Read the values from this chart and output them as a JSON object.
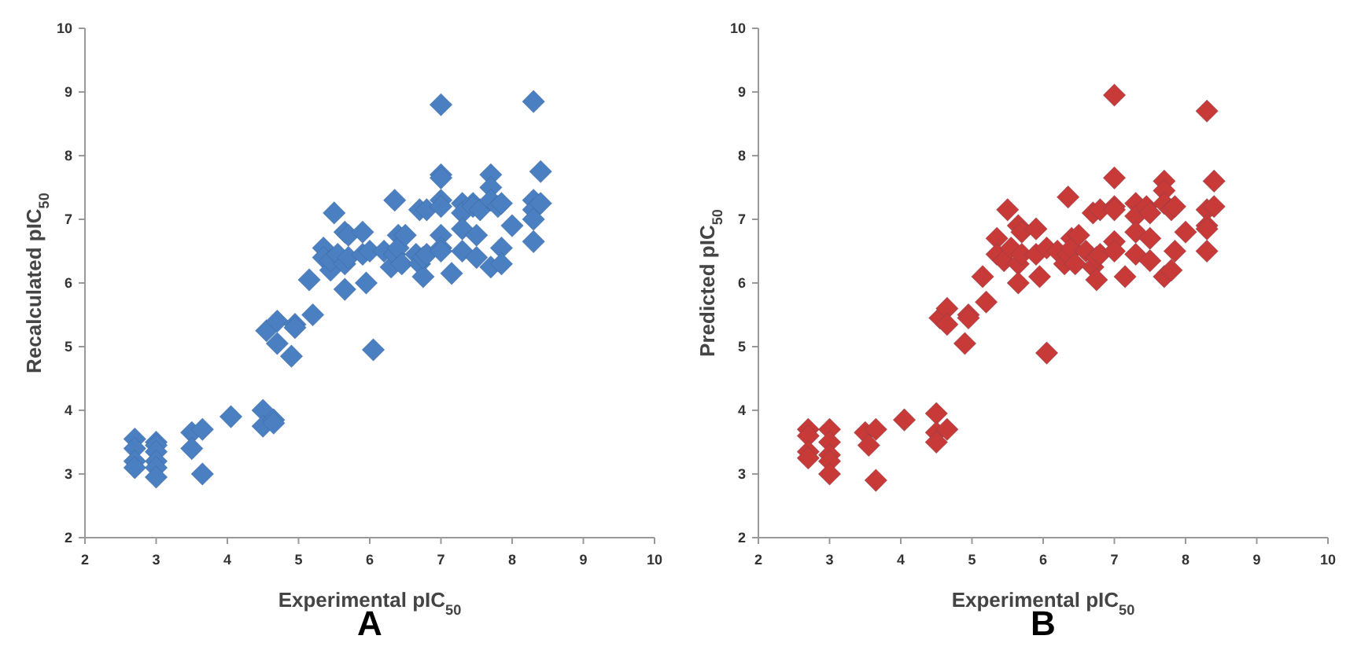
{
  "chart_data": [
    {
      "type": "scatter",
      "title": "A",
      "xlabel": "Experimental pIC$_{50}$",
      "ylabel": "Recalculated pIC$_{50}$",
      "xlim": [
        2,
        10
      ],
      "ylim": [
        2,
        10
      ],
      "xticks": [
        2,
        3,
        4,
        5,
        6,
        7,
        8,
        9,
        10
      ],
      "yticks": [
        2,
        3,
        4,
        5,
        6,
        7,
        8,
        9,
        10
      ],
      "grid": false,
      "marker": "diamond",
      "series": [
        {
          "color": "#4a7fc1",
          "x": [
            2.7,
            2.7,
            2.7,
            2.7,
            3.0,
            3.0,
            3.0,
            3.0,
            3.0,
            3.0,
            3.5,
            3.5,
            3.65,
            3.65,
            4.05,
            4.5,
            4.5,
            4.65,
            4.65,
            4.55,
            4.7,
            4.7,
            4.9,
            4.95,
            4.95,
            5.15,
            5.2,
            5.5,
            5.35,
            5.35,
            5.45,
            5.45,
            5.55,
            5.65,
            5.65,
            5.65,
            5.7,
            5.7,
            5.9,
            5.9,
            5.95,
            6.0,
            6.05,
            6.2,
            6.3,
            6.35,
            6.35,
            6.4,
            6.4,
            6.45,
            6.5,
            6.65,
            6.7,
            6.7,
            6.75,
            6.75,
            6.8,
            6.8,
            7.0,
            7.0,
            7.0,
            7.0,
            7.0,
            7.0,
            7.0,
            7.0,
            7.15,
            7.3,
            7.3,
            7.3,
            7.3,
            7.45,
            7.45,
            7.5,
            7.5,
            7.55,
            7.7,
            7.7,
            7.7,
            7.7,
            7.8,
            7.85,
            7.85,
            7.85,
            8.0,
            8.3,
            8.3,
            8.3,
            8.3,
            8.3,
            8.4,
            8.4
          ],
          "values": [
            3.55,
            3.4,
            3.2,
            3.1,
            3.5,
            3.45,
            3.35,
            3.2,
            3.1,
            2.95,
            3.65,
            3.4,
            3.7,
            3.0,
            3.9,
            4.0,
            3.75,
            3.85,
            3.8,
            5.25,
            5.4,
            5.05,
            4.85,
            5.35,
            5.3,
            6.05,
            5.5,
            7.1,
            6.55,
            6.4,
            6.2,
            6.35,
            6.45,
            6.8,
            6.3,
            5.9,
            6.75,
            6.4,
            6.8,
            6.45,
            6.0,
            6.5,
            4.95,
            6.5,
            6.25,
            7.3,
            6.45,
            6.75,
            6.55,
            6.3,
            6.75,
            6.45,
            7.15,
            6.3,
            6.1,
            6.4,
            7.15,
            6.45,
            8.8,
            7.7,
            7.65,
            7.3,
            7.2,
            6.75,
            6.55,
            6.5,
            6.15,
            7.25,
            7.1,
            6.85,
            6.5,
            7.25,
            7.2,
            6.75,
            6.4,
            7.15,
            7.7,
            7.5,
            7.3,
            6.25,
            7.2,
            7.25,
            6.55,
            6.3,
            6.9,
            8.85,
            7.3,
            7.15,
            7.0,
            6.65,
            7.75,
            7.25
          ]
        }
      ]
    },
    {
      "type": "scatter",
      "title": "B",
      "xlabel": "Experimental pIC$_{50}$",
      "ylabel": "Predicted pIC$_{50}$",
      "xlim": [
        2,
        10
      ],
      "ylim": [
        2,
        10
      ],
      "xticks": [
        2,
        3,
        4,
        5,
        6,
        7,
        8,
        9,
        10
      ],
      "yticks": [
        2,
        3,
        4,
        5,
        6,
        7,
        8,
        9,
        10
      ],
      "grid": false,
      "marker": "diamond",
      "series": [
        {
          "color": "#c83a38",
          "x": [
            2.7,
            2.7,
            2.7,
            2.7,
            3.0,
            3.0,
            3.0,
            3.0,
            3.0,
            3.5,
            3.55,
            3.65,
            3.65,
            4.05,
            4.5,
            4.5,
            4.5,
            4.65,
            4.55,
            4.65,
            4.65,
            4.9,
            4.95,
            4.95,
            5.15,
            5.2,
            5.5,
            5.35,
            5.35,
            5.45,
            5.55,
            5.65,
            5.65,
            5.65,
            5.7,
            5.7,
            5.9,
            5.9,
            5.95,
            6.05,
            6.05,
            6.2,
            6.3,
            6.35,
            6.35,
            6.4,
            6.4,
            6.45,
            6.5,
            6.6,
            6.7,
            6.7,
            6.75,
            6.75,
            6.8,
            6.8,
            7.0,
            7.0,
            7.0,
            7.0,
            7.0,
            7.0,
            7.15,
            7.3,
            7.3,
            7.3,
            7.3,
            7.45,
            7.5,
            7.5,
            7.5,
            7.7,
            7.7,
            7.7,
            7.7,
            7.8,
            7.8,
            7.85,
            7.85,
            8.0,
            8.3,
            8.3,
            8.3,
            8.3,
            8.3,
            8.4,
            8.4
          ],
          "values": [
            3.7,
            3.6,
            3.35,
            3.25,
            3.7,
            3.5,
            3.3,
            3.2,
            3.0,
            3.65,
            3.45,
            3.7,
            2.9,
            3.85,
            3.95,
            3.65,
            3.5,
            3.7,
            5.45,
            5.6,
            5.35,
            5.05,
            5.5,
            5.45,
            6.1,
            5.7,
            7.15,
            6.7,
            6.45,
            6.35,
            6.55,
            6.9,
            6.3,
            6.0,
            6.8,
            6.45,
            6.85,
            6.45,
            6.1,
            6.55,
            4.9,
            6.5,
            6.3,
            7.35,
            6.45,
            6.7,
            6.55,
            6.3,
            6.75,
            6.5,
            7.1,
            6.25,
            6.05,
            6.4,
            7.15,
            6.45,
            8.95,
            7.65,
            7.2,
            7.15,
            6.65,
            6.5,
            6.1,
            7.25,
            7.05,
            6.8,
            6.45,
            7.2,
            7.1,
            6.7,
            6.35,
            7.6,
            7.45,
            7.25,
            6.1,
            7.15,
            6.2,
            7.2,
            6.5,
            6.8,
            8.7,
            7.15,
            6.9,
            6.85,
            6.5,
            7.6,
            7.2
          ]
        }
      ]
    }
  ]
}
